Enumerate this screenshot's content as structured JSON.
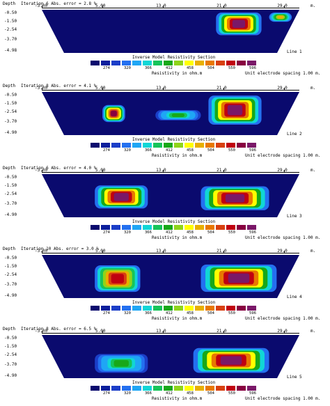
{
  "chart_data": [
    {
      "type": "heatmap",
      "panel": 1,
      "header": "Iteration 6 Abs. error = 2.8 %",
      "depth_label": "Depth",
      "x_ticks": [
        "-3.00",
        "5.00",
        "13.0",
        "21.0",
        "29.0"
      ],
      "x_tick_values": [
        -3,
        5,
        13,
        21,
        29
      ],
      "unit": "m.",
      "y_ticks": [
        "-0.50",
        "-1.50",
        "-2.54",
        "-3.70",
        "-4.98"
      ],
      "y_tick_values": [
        -0.5,
        -1.5,
        -2.54,
        -3.7,
        -4.98
      ],
      "line_label": "Line 1",
      "section_title": "Inverse Model Resistivity Section",
      "legend_values": [
        "274",
        "320",
        "366",
        "412",
        "458",
        "504",
        "550",
        "596"
      ],
      "legend_caption": "Resistivity in ohm.m",
      "electrode_spacing": "Unit electrode spacing 1.00 m.",
      "anomalies": [
        {
          "x_range": [
            20,
            26
          ],
          "y_range": [
            -0.5,
            -3.2
          ],
          "peak": 596
        },
        {
          "x_range": [
            27,
            30
          ],
          "y_range": [
            -0.5,
            -1.6
          ],
          "peak": 480
        }
      ]
    },
    {
      "type": "heatmap",
      "panel": 2,
      "header": "Iteration 8 Abs. error = 4.1 %",
      "depth_label": "Depth",
      "x_ticks": [
        "-3.00",
        "5.00",
        "13.0",
        "21.0",
        "29.0"
      ],
      "x_tick_values": [
        -3,
        5,
        13,
        21,
        29
      ],
      "unit": "m.",
      "y_ticks": [
        "-0.50",
        "-1.50",
        "-2.54",
        "-3.70",
        "-4.90"
      ],
      "y_tick_values": [
        -0.5,
        -1.5,
        -2.54,
        -3.7,
        -4.9
      ],
      "line_label": "Line 2",
      "section_title": "Inverse Model Resistivity Section",
      "legend_values": [
        "274",
        "320",
        "366",
        "412",
        "458",
        "504",
        "550",
        "596"
      ],
      "legend_caption": "Resistivity in ohm.m",
      "electrode_spacing": "Unit electrode spacing 1.00 m.",
      "anomalies": [
        {
          "x_range": [
            5,
            8
          ],
          "y_range": [
            -1.7,
            -3.7
          ],
          "peak": 580
        },
        {
          "x_range": [
            12,
            18
          ],
          "y_range": [
            -2.3,
            -3.5
          ],
          "peak": 420
        },
        {
          "x_range": [
            19,
            26
          ],
          "y_range": [
            -0.6,
            -4.0
          ],
          "peak": 596
        }
      ]
    },
    {
      "type": "heatmap",
      "panel": 3,
      "header": "Iteration 6 Abs. error = 4.0 %",
      "depth_label": "Depth",
      "x_ticks": [
        "-3.00",
        "5.00",
        "13.0",
        "21.0",
        "29.0"
      ],
      "x_tick_values": [
        -3,
        5,
        13,
        21,
        29
      ],
      "unit": "m.",
      "y_ticks": [
        "-0.50",
        "-1.50",
        "-2.54",
        "-3.70",
        "-4.90"
      ],
      "y_tick_values": [
        -0.5,
        -1.5,
        -2.54,
        -3.7,
        -4.9
      ],
      "line_label": "Line 3",
      "section_title": "Inverse Model Resistivity Section",
      "legend_values": [
        "274",
        "320",
        "366",
        "412",
        "458",
        "504",
        "550",
        "596"
      ],
      "legend_caption": "Resistivity in ohm.m",
      "electrode_spacing": "Unit electrode spacing 1.00 m.",
      "anomalies": [
        {
          "x_range": [
            4,
            11
          ],
          "y_range": [
            -1.5,
            -4.2
          ],
          "peak": 596
        },
        {
          "x_range": [
            18,
            27
          ],
          "y_range": [
            -1.6,
            -4.4
          ],
          "peak": 596
        }
      ]
    },
    {
      "type": "heatmap",
      "panel": 4,
      "header": "Iteration 10 Abs. error = 3.0 %",
      "depth_label": "Depth",
      "x_ticks": [
        "-3.00",
        "5.00",
        "13.0",
        "21.0",
        "29.0"
      ],
      "x_tick_values": [
        -3,
        5,
        13,
        21,
        29
      ],
      "unit": "m.",
      "y_ticks": [
        "-0.50",
        "-1.50",
        "-2.54",
        "-3.70",
        "-4.90"
      ],
      "y_tick_values": [
        -0.5,
        -1.5,
        -2.54,
        -3.7,
        -4.9
      ],
      "line_label": "Line 4",
      "section_title": "Inverse Model Resistivity Section",
      "legend_values": [
        "274",
        "320",
        "366",
        "412",
        "458",
        "504",
        "550",
        "596"
      ],
      "legend_caption": "Resistivity in ohm.m",
      "electrode_spacing": "Unit electrode spacing 1.00 m.",
      "anomalies": [
        {
          "x_range": [
            4,
            10
          ],
          "y_range": [
            -1.4,
            -4.5
          ],
          "peak": 560
        },
        {
          "x_range": [
            18,
            28
          ],
          "y_range": [
            -1.3,
            -4.5
          ],
          "peak": 596
        }
      ]
    },
    {
      "type": "heatmap",
      "panel": 5,
      "header": "Iteration 8 Abs. error = 6.5 %",
      "depth_label": "Depth",
      "x_ticks": [
        "-3.00",
        "5.00",
        "13.0",
        "21.0",
        "29.0"
      ],
      "x_tick_values": [
        -3,
        5,
        13,
        21,
        29
      ],
      "unit": "m.",
      "y_ticks": [
        "-0.50",
        "-1.50",
        "-2.54",
        "-3.70",
        "-4.90"
      ],
      "y_tick_values": [
        -0.5,
        -1.5,
        -2.54,
        -3.7,
        -4.9
      ],
      "line_label": "Line 5",
      "section_title": "Inverse Model Resistivity Section",
      "legend_values": [
        "274",
        "320",
        "366",
        "412",
        "458",
        "504",
        "550",
        "596"
      ],
      "legend_caption": "Resistivity in ohm.m",
      "electrode_spacing": "Unit electrode spacing 1.00 m.",
      "anomalies": [
        {
          "x_range": [
            4,
            11
          ],
          "y_range": [
            -2.4,
            -4.6
          ],
          "peak": 420
        },
        {
          "x_range": [
            17,
            27
          ],
          "y_range": [
            -1.7,
            -4.6
          ],
          "peak": 596
        }
      ]
    }
  ],
  "palette": [
    "#0a0a6e",
    "#0c1f9c",
    "#1b3ec8",
    "#2470f0",
    "#1fa6f5",
    "#11d6d6",
    "#16c45a",
    "#18a818",
    "#8fd41a",
    "#ffff00",
    "#e8b000",
    "#e87800",
    "#d84010",
    "#c00010",
    "#880040",
    "#7a1868"
  ]
}
